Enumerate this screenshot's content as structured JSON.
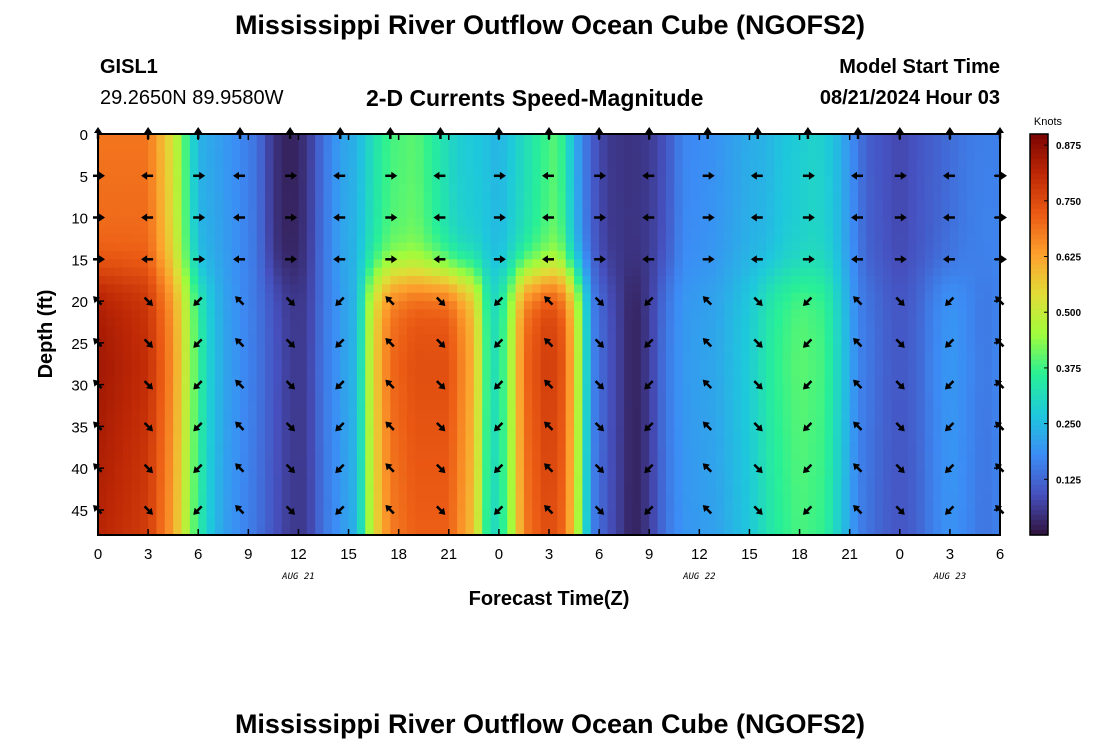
{
  "title": "Mississippi River Outflow Ocean Cube (NGOFS2)",
  "station": {
    "id": "GISL1",
    "coords": "29.2650N  89.9580W"
  },
  "subtitle": "2-D Currents Speed-Magnitude",
  "model_start": {
    "label": "Model Start Time",
    "value": "08/21/2024 Hour 03"
  },
  "footer_title": "Mississippi River Outflow Ocean Cube (NGOFS2)",
  "chart_data": {
    "type": "heatmap",
    "xlabel": "Forecast Time(Z)",
    "ylabel": "Depth (ft)",
    "x_tick_labels": [
      "0",
      "3",
      "6",
      "9",
      "12",
      "15",
      "18",
      "21",
      "0",
      "3",
      "6",
      "9",
      "12",
      "15",
      "18",
      "21",
      "0",
      "3",
      "6"
    ],
    "x_range_hours": [
      0,
      54
    ],
    "date_labels": [
      {
        "text": "AUG 21",
        "hour": 12
      },
      {
        "text": "AUG 22",
        "hour": 36
      },
      {
        "text": "AUG 23",
        "hour": 51
      }
    ],
    "y_ticks": [
      0,
      5,
      10,
      15,
      20,
      25,
      30,
      35,
      40,
      45
    ],
    "y_range": [
      0,
      48
    ],
    "colorbar": {
      "unit": "Knots",
      "ticks": [
        "0.875",
        "0.750",
        "0.625",
        "0.500",
        "0.375",
        "0.250",
        "0.125"
      ],
      "tick_values": [
        0.875,
        0.75,
        0.625,
        0.5,
        0.375,
        0.25,
        0.125
      ],
      "min": 0.0,
      "max": 0.9
    },
    "vector_hours": [
      0,
      3,
      6,
      8.5,
      11.5,
      14.5,
      17.5,
      20.5,
      24,
      27,
      30,
      33,
      36.5,
      39.5,
      42.5,
      45.5,
      48,
      51,
      54
    ],
    "vector_depths": [
      0,
      5,
      10,
      15,
      20,
      25,
      30,
      35,
      40,
      45
    ],
    "speed_upper_layer": [
      [
        0,
        0.72
      ],
      [
        3,
        0.72
      ],
      [
        4.5,
        0.55
      ],
      [
        5.5,
        0.35
      ],
      [
        6,
        0.25
      ],
      [
        8,
        0.2
      ],
      [
        9.5,
        0.15
      ],
      [
        10.5,
        0.05
      ],
      [
        11.5,
        0.02
      ],
      [
        12.5,
        0.05
      ],
      [
        13.5,
        0.15
      ],
      [
        14.5,
        0.22
      ],
      [
        15.5,
        0.25
      ],
      [
        16.5,
        0.34
      ],
      [
        17.5,
        0.4
      ],
      [
        19,
        0.42
      ],
      [
        20.5,
        0.35
      ],
      [
        21.5,
        0.3
      ],
      [
        23,
        0.28
      ],
      [
        24,
        0.25
      ],
      [
        25,
        0.3
      ],
      [
        26.5,
        0.38
      ],
      [
        27.5,
        0.42
      ],
      [
        28,
        0.35
      ],
      [
        28.5,
        0.25
      ],
      [
        29.5,
        0.12
      ],
      [
        30.5,
        0.06
      ],
      [
        32,
        0.05
      ],
      [
        33,
        0.06
      ],
      [
        34,
        0.1
      ],
      [
        35,
        0.18
      ],
      [
        37,
        0.2
      ],
      [
        39,
        0.24
      ],
      [
        40,
        0.25
      ],
      [
        41,
        0.28
      ],
      [
        43,
        0.31
      ],
      [
        44,
        0.28
      ],
      [
        45,
        0.2
      ],
      [
        46,
        0.12
      ],
      [
        47,
        0.1
      ],
      [
        48,
        0.08
      ],
      [
        49,
        0.1
      ],
      [
        50,
        0.12
      ],
      [
        51,
        0.14
      ],
      [
        52,
        0.16
      ],
      [
        53,
        0.17
      ],
      [
        54,
        0.17
      ]
    ],
    "speed_lower_layer": [
      [
        0,
        0.85
      ],
      [
        3,
        0.8
      ],
      [
        4.5,
        0.65
      ],
      [
        5.5,
        0.45
      ],
      [
        6.5,
        0.3
      ],
      [
        7.5,
        0.22
      ],
      [
        9.5,
        0.15
      ],
      [
        10.5,
        0.1
      ],
      [
        11.5,
        0.06
      ],
      [
        12.5,
        0.06
      ],
      [
        13.5,
        0.15
      ],
      [
        14.5,
        0.2
      ],
      [
        15.5,
        0.25
      ],
      [
        16.5,
        0.55
      ],
      [
        17.5,
        0.7
      ],
      [
        19,
        0.74
      ],
      [
        21,
        0.74
      ],
      [
        22.5,
        0.6
      ],
      [
        23.5,
        0.3
      ],
      [
        24.5,
        0.4
      ],
      [
        25.5,
        0.7
      ],
      [
        27,
        0.78
      ],
      [
        28,
        0.72
      ],
      [
        29,
        0.4
      ],
      [
        29.5,
        0.18
      ],
      [
        30.5,
        0.1
      ],
      [
        31.5,
        0.05
      ],
      [
        32,
        0.02
      ],
      [
        33,
        0.06
      ],
      [
        34,
        0.15
      ],
      [
        35,
        0.2
      ],
      [
        37,
        0.22
      ],
      [
        39,
        0.28
      ],
      [
        40.5,
        0.36
      ],
      [
        42,
        0.4
      ],
      [
        43.5,
        0.38
      ],
      [
        44.5,
        0.28
      ],
      [
        45.5,
        0.17
      ],
      [
        47,
        0.12
      ],
      [
        48,
        0.1
      ],
      [
        49,
        0.12
      ],
      [
        50,
        0.17
      ],
      [
        51,
        0.2
      ],
      [
        52,
        0.18
      ],
      [
        53,
        0.15
      ],
      [
        54,
        0.17
      ]
    ],
    "layer_boundary_depth_ft": 17
  }
}
